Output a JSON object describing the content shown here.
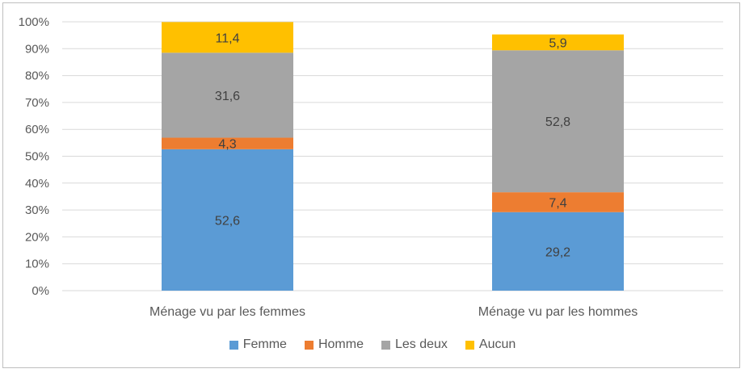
{
  "chart_data": {
    "type": "bar",
    "stacked": true,
    "categories": [
      "Ménage vu par les femmes",
      "Ménage vu par les hommes"
    ],
    "series": [
      {
        "name": "Femme",
        "values": [
          52.6,
          29.2
        ],
        "labels": [
          "52,6",
          "29,2"
        ],
        "color": "#5b9bd5"
      },
      {
        "name": "Homme",
        "values": [
          4.3,
          7.4
        ],
        "labels": [
          "4,3",
          "7,4"
        ],
        "color": "#ed7d31"
      },
      {
        "name": "Les deux",
        "values": [
          31.6,
          52.8
        ],
        "labels": [
          "31,6",
          "52,8"
        ],
        "color": "#a5a5a5"
      },
      {
        "name": "Aucun",
        "values": [
          11.4,
          5.9
        ],
        "labels": [
          "11,4",
          "5,9"
        ],
        "color": "#ffc000"
      }
    ],
    "yticks": [
      "0%",
      "10%",
      "20%",
      "30%",
      "40%",
      "50%",
      "60%",
      "70%",
      "80%",
      "90%",
      "100%"
    ],
    "ylim": [
      0,
      100
    ],
    "grid": true,
    "legend_position": "bottom"
  }
}
